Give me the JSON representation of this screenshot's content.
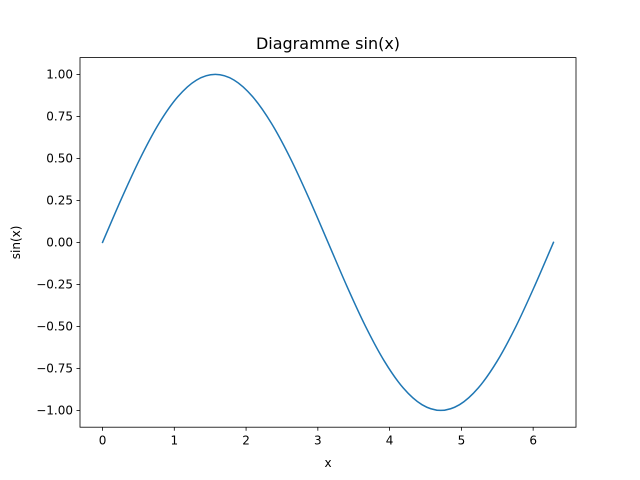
{
  "chart_data": {
    "type": "line",
    "title": "Diagramme sin(x)",
    "xlabel": "x",
    "ylabel": "sin(x)",
    "xlim": [
      -0.314,
      6.597
    ],
    "ylim": [
      -1.1,
      1.1
    ],
    "grid": false,
    "x_ticks": [
      0,
      1,
      2,
      3,
      4,
      5,
      6
    ],
    "x_tick_labels": [
      "0",
      "1",
      "2",
      "3",
      "4",
      "5",
      "6"
    ],
    "y_ticks": [
      -1.0,
      -0.75,
      -0.5,
      -0.25,
      0.0,
      0.25,
      0.5,
      0.75,
      1.0
    ],
    "y_tick_labels": [
      "−1.00",
      "−0.75",
      "−0.50",
      "−0.25",
      "0.00",
      "0.25",
      "0.50",
      "0.75",
      "1.00"
    ],
    "series": [
      {
        "color": "#1f77b4",
        "x": [
          0.0,
          0.262,
          0.524,
          0.785,
          1.047,
          1.309,
          1.571,
          1.833,
          2.094,
          2.356,
          2.618,
          2.88,
          3.142,
          3.403,
          3.665,
          3.927,
          4.189,
          4.451,
          4.712,
          4.974,
          5.236,
          5.498,
          5.76,
          6.021,
          6.283
        ],
        "values": [
          0.0,
          0.259,
          0.5,
          0.707,
          0.866,
          0.966,
          1.0,
          0.966,
          0.866,
          0.707,
          0.5,
          0.259,
          0.0,
          -0.259,
          -0.5,
          -0.707,
          -0.866,
          -0.966,
          -1.0,
          -0.966,
          -0.866,
          -0.707,
          -0.5,
          -0.259,
          0.0
        ]
      }
    ]
  }
}
